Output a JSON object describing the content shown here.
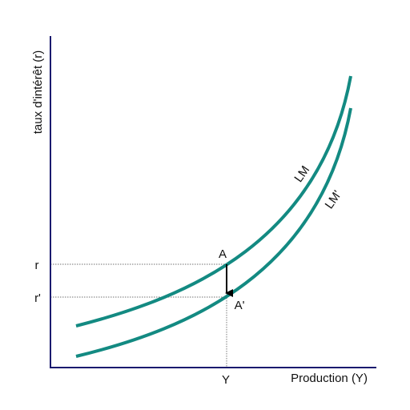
{
  "axes": {
    "y_title": "taux d'intérêt (r)",
    "x_title": "Production (Y)"
  },
  "curves": [
    {
      "label": "LM"
    },
    {
      "label": "LM'"
    }
  ],
  "points": [
    {
      "label": "A"
    },
    {
      "label": "A'"
    }
  ],
  "y_ticks": [
    "r",
    "r'"
  ],
  "x_ticks": [
    "Y"
  ]
}
